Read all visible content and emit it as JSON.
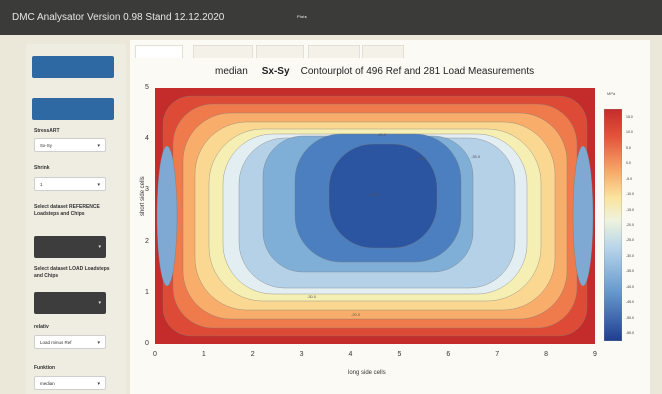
{
  "app": {
    "title": "DMC Analysator Version 0.98 Stand 12.12.2020",
    "nav": [
      "",
      "Plots",
      "",
      ""
    ],
    "active_nav": 1
  },
  "sidebar": {
    "btn1": "",
    "btn2": "",
    "stress_label": "StressART",
    "stress_value": "Sx-Sy",
    "shrink_label": "Shrink",
    "shrink_value": "1",
    "ref_label": "Select dataset REFERENCE Loadsteps and Chips",
    "ref_value": "",
    "load_label": "Select dataset LOAD Loadsteps and Chips",
    "load_value": "",
    "relativ_label": "relativ",
    "relativ_value": "Load minus Ref",
    "funktion_label": "Funktion",
    "funktion_value": "median"
  },
  "tabs": [
    "",
    "",
    "",
    "",
    ""
  ],
  "active_tab": 0,
  "plot": {
    "title_pre": "median",
    "title_stress": "Sx-Sy",
    "title_rest": "Contourplot of  496 Ref and  281 Load Measurements",
    "xlabel": "long side cells",
    "ylabel": "short side cells",
    "colorbar_title": "MPa"
  },
  "chart_data": {
    "type": "heatmap",
    "title": "median    Sx-Sy    Contourplot of  496 Ref and  281 Load Measurements",
    "xlabel": "long side cells",
    "ylabel": "short side cells",
    "x_ticks": [
      "0",
      "1",
      "2",
      "3",
      "4",
      "5",
      "6",
      "7",
      "8",
      "9"
    ],
    "y_ticks": [
      "0",
      "1",
      "2",
      "3",
      "4",
      "5"
    ],
    "xlim": [
      0,
      9
    ],
    "ylim": [
      0,
      5
    ],
    "colorbar_ticks": [
      "15.0",
      "10.0",
      "5.0",
      "0.0",
      "-5.0",
      "-10.0",
      "-15.0",
      "-20.0",
      "-25.0",
      "-30.0",
      "-35.0",
      "-40.0",
      "-45.0",
      "-50.0",
      "-55.0"
    ],
    "colorbar_range": [
      -57.5,
      17.5
    ],
    "contour_labels": [
      "-50.0",
      "-45.0",
      "-40.0",
      "-35.0",
      "-30.0",
      "-20.0"
    ],
    "colors": [
      "#2b55a0",
      "#4b7fc0",
      "#7faed6",
      "#b4d1e8",
      "#e3eef2",
      "#f6efb4",
      "#fbd891",
      "#f9ad6b",
      "#ef7a4c",
      "#dd4b37",
      "#c42c2b"
    ]
  }
}
